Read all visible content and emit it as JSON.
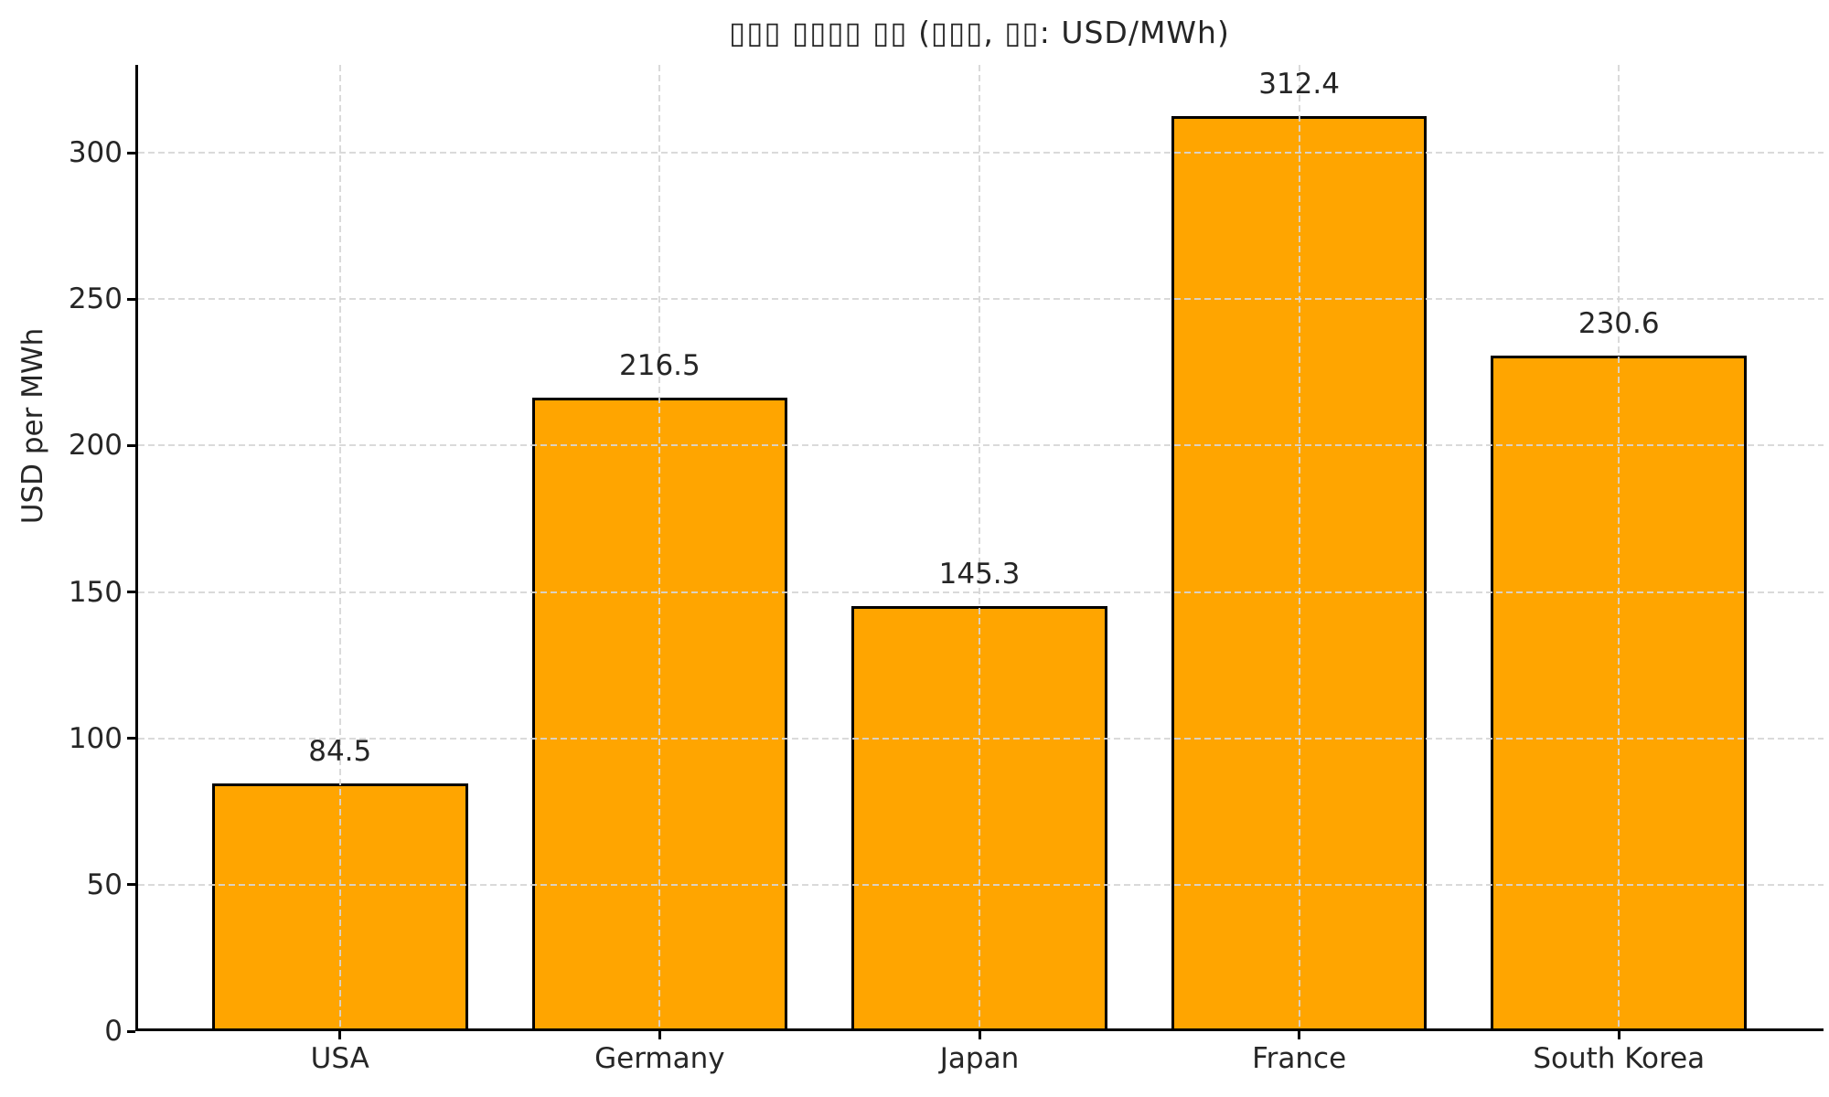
{
  "chart_data": {
    "type": "bar",
    "title": "▯▯▯ ▯▯▯▯ ▯▯ (▯▯▯, ▯▯: USD/MWh)",
    "categories": [
      "USA",
      "Germany",
      "Japan",
      "France",
      "South Korea"
    ],
    "values": [
      84.5,
      216.5,
      145.3,
      312.4,
      230.6
    ],
    "value_labels": [
      "84.5",
      "216.5",
      "145.3",
      "312.4",
      "230.6"
    ],
    "xlabel": "",
    "ylabel": "USD per MWh",
    "yticks": [
      0,
      50,
      100,
      150,
      200,
      250,
      300
    ],
    "ylim": [
      0,
      330
    ],
    "bar_width_fraction": 0.8,
    "grid": true,
    "grid_style": "dashed",
    "grid_above_bars": true,
    "legend_position": "none",
    "colors": {
      "bar": "#FFA500",
      "bar_edge": "#000000",
      "grid": "#d6d6d6",
      "text": "#262626",
      "background": "#ffffff"
    }
  }
}
